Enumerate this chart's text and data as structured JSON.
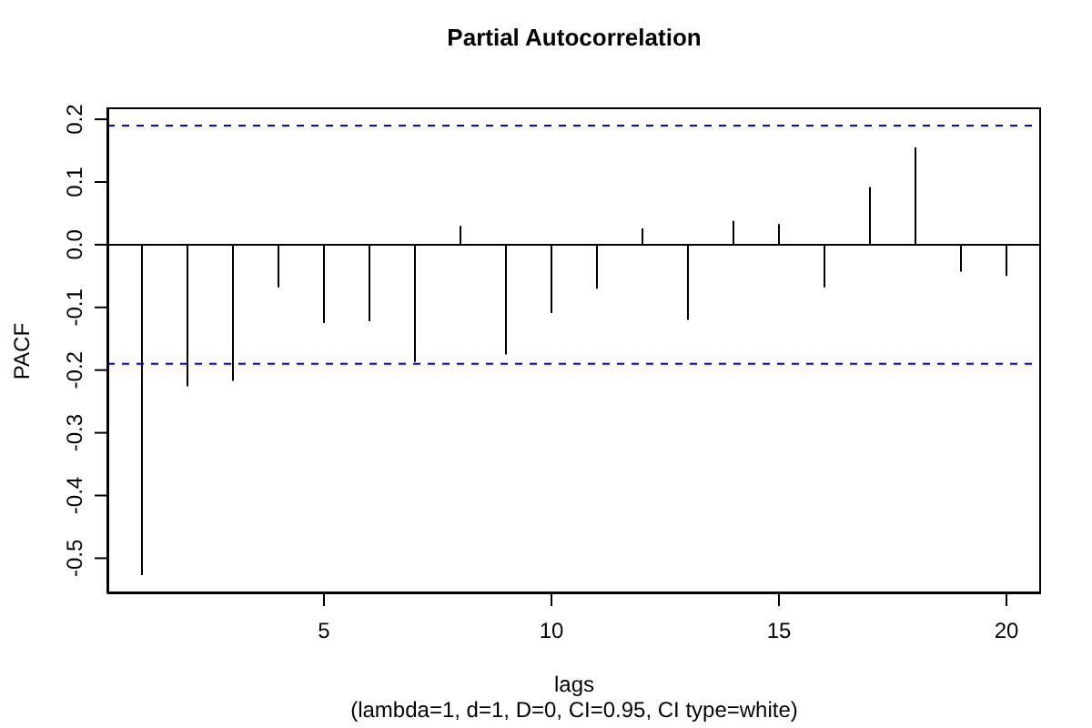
{
  "chart_data": {
    "type": "bar",
    "title": "Partial Autocorrelation",
    "xlabel": "lags",
    "ylabel": "PACF",
    "annotations": [
      "(lambda=1, d=1, D=0, CI=0.95, CI type=white)"
    ],
    "x": [
      1,
      2,
      3,
      4,
      5,
      6,
      7,
      8,
      9,
      10,
      11,
      12,
      13,
      14,
      15,
      16,
      17,
      18,
      19,
      20
    ],
    "values": [
      -0.527,
      -0.226,
      -0.217,
      -0.068,
      -0.125,
      -0.122,
      -0.187,
      0.03,
      -0.175,
      -0.109,
      -0.07,
      0.026,
      -0.12,
      0.038,
      0.033,
      -0.068,
      0.092,
      0.155,
      -0.043,
      -0.05
    ],
    "color": "#000000",
    "xlim": [
      0.24,
      20.76
    ],
    "xticks": [
      5,
      10,
      15,
      20
    ],
    "ylim": [
      -0.556,
      0.219
    ],
    "yticks": [
      -0.5,
      -0.4,
      -0.3,
      -0.2,
      -0.1,
      {
        "value": 0,
        "label": "0.0"
      },
      0.1,
      0.2
    ],
    "ref_lines": [
      {
        "axis": "y",
        "value": 0.19,
        "color": "#0000ff",
        "line_style": "dashed"
      },
      {
        "axis": "y",
        "value": -0.19,
        "color": "#0000ff",
        "line_style": "dashed"
      },
      {
        "axis": "y",
        "value": 0,
        "color": "#000000",
        "line_style": "solid"
      }
    ]
  }
}
